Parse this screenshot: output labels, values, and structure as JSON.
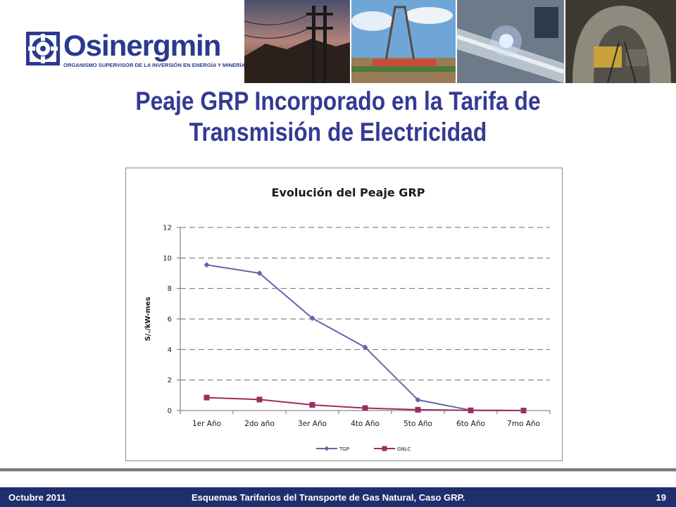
{
  "header": {
    "logo_name": "Osinergmin",
    "logo_subtitle": "ORGANISMO SUPERVISOR DE LA INVERSIÓN EN ENERGÍA Y MINERÍA",
    "brand_color": "#2a3a8f"
  },
  "slide": {
    "title_line1": "Peaje GRP Incorporado en la Tarifa de",
    "title_line2": "Transmisión de Electricidad",
    "title_color": "#343a94"
  },
  "chart_data": {
    "type": "line",
    "title": "Evolución del Peaje GRP",
    "xlabel": "",
    "ylabel": "S/./kW-mes",
    "categories": [
      "1er Año",
      "2do año",
      "3er Año",
      "4to Año",
      "5to Año",
      "6to Año",
      "7mo Año"
    ],
    "ylim": [
      0,
      12
    ],
    "yticks": [
      0,
      2,
      4,
      6,
      8,
      10,
      12
    ],
    "grid": true,
    "legend_position": "bottom",
    "series": [
      {
        "name": "TGP",
        "values": [
          9.55,
          9.0,
          6.05,
          4.15,
          0.7,
          0.02,
          0.0
        ],
        "color": "#6266a8",
        "marker": "diamond"
      },
      {
        "name": "GNLC",
        "values": [
          0.85,
          0.72,
          0.37,
          0.16,
          0.05,
          0.01,
          0.0
        ],
        "color": "#9b2d62",
        "marker": "square"
      }
    ]
  },
  "footer": {
    "date": "Octubre 2011",
    "caption": "Esquemas Tarifarios  del Transporte  de  Gas Natural, Caso GRP.",
    "page_number": "19",
    "bar_color": "#1f2f6e"
  }
}
